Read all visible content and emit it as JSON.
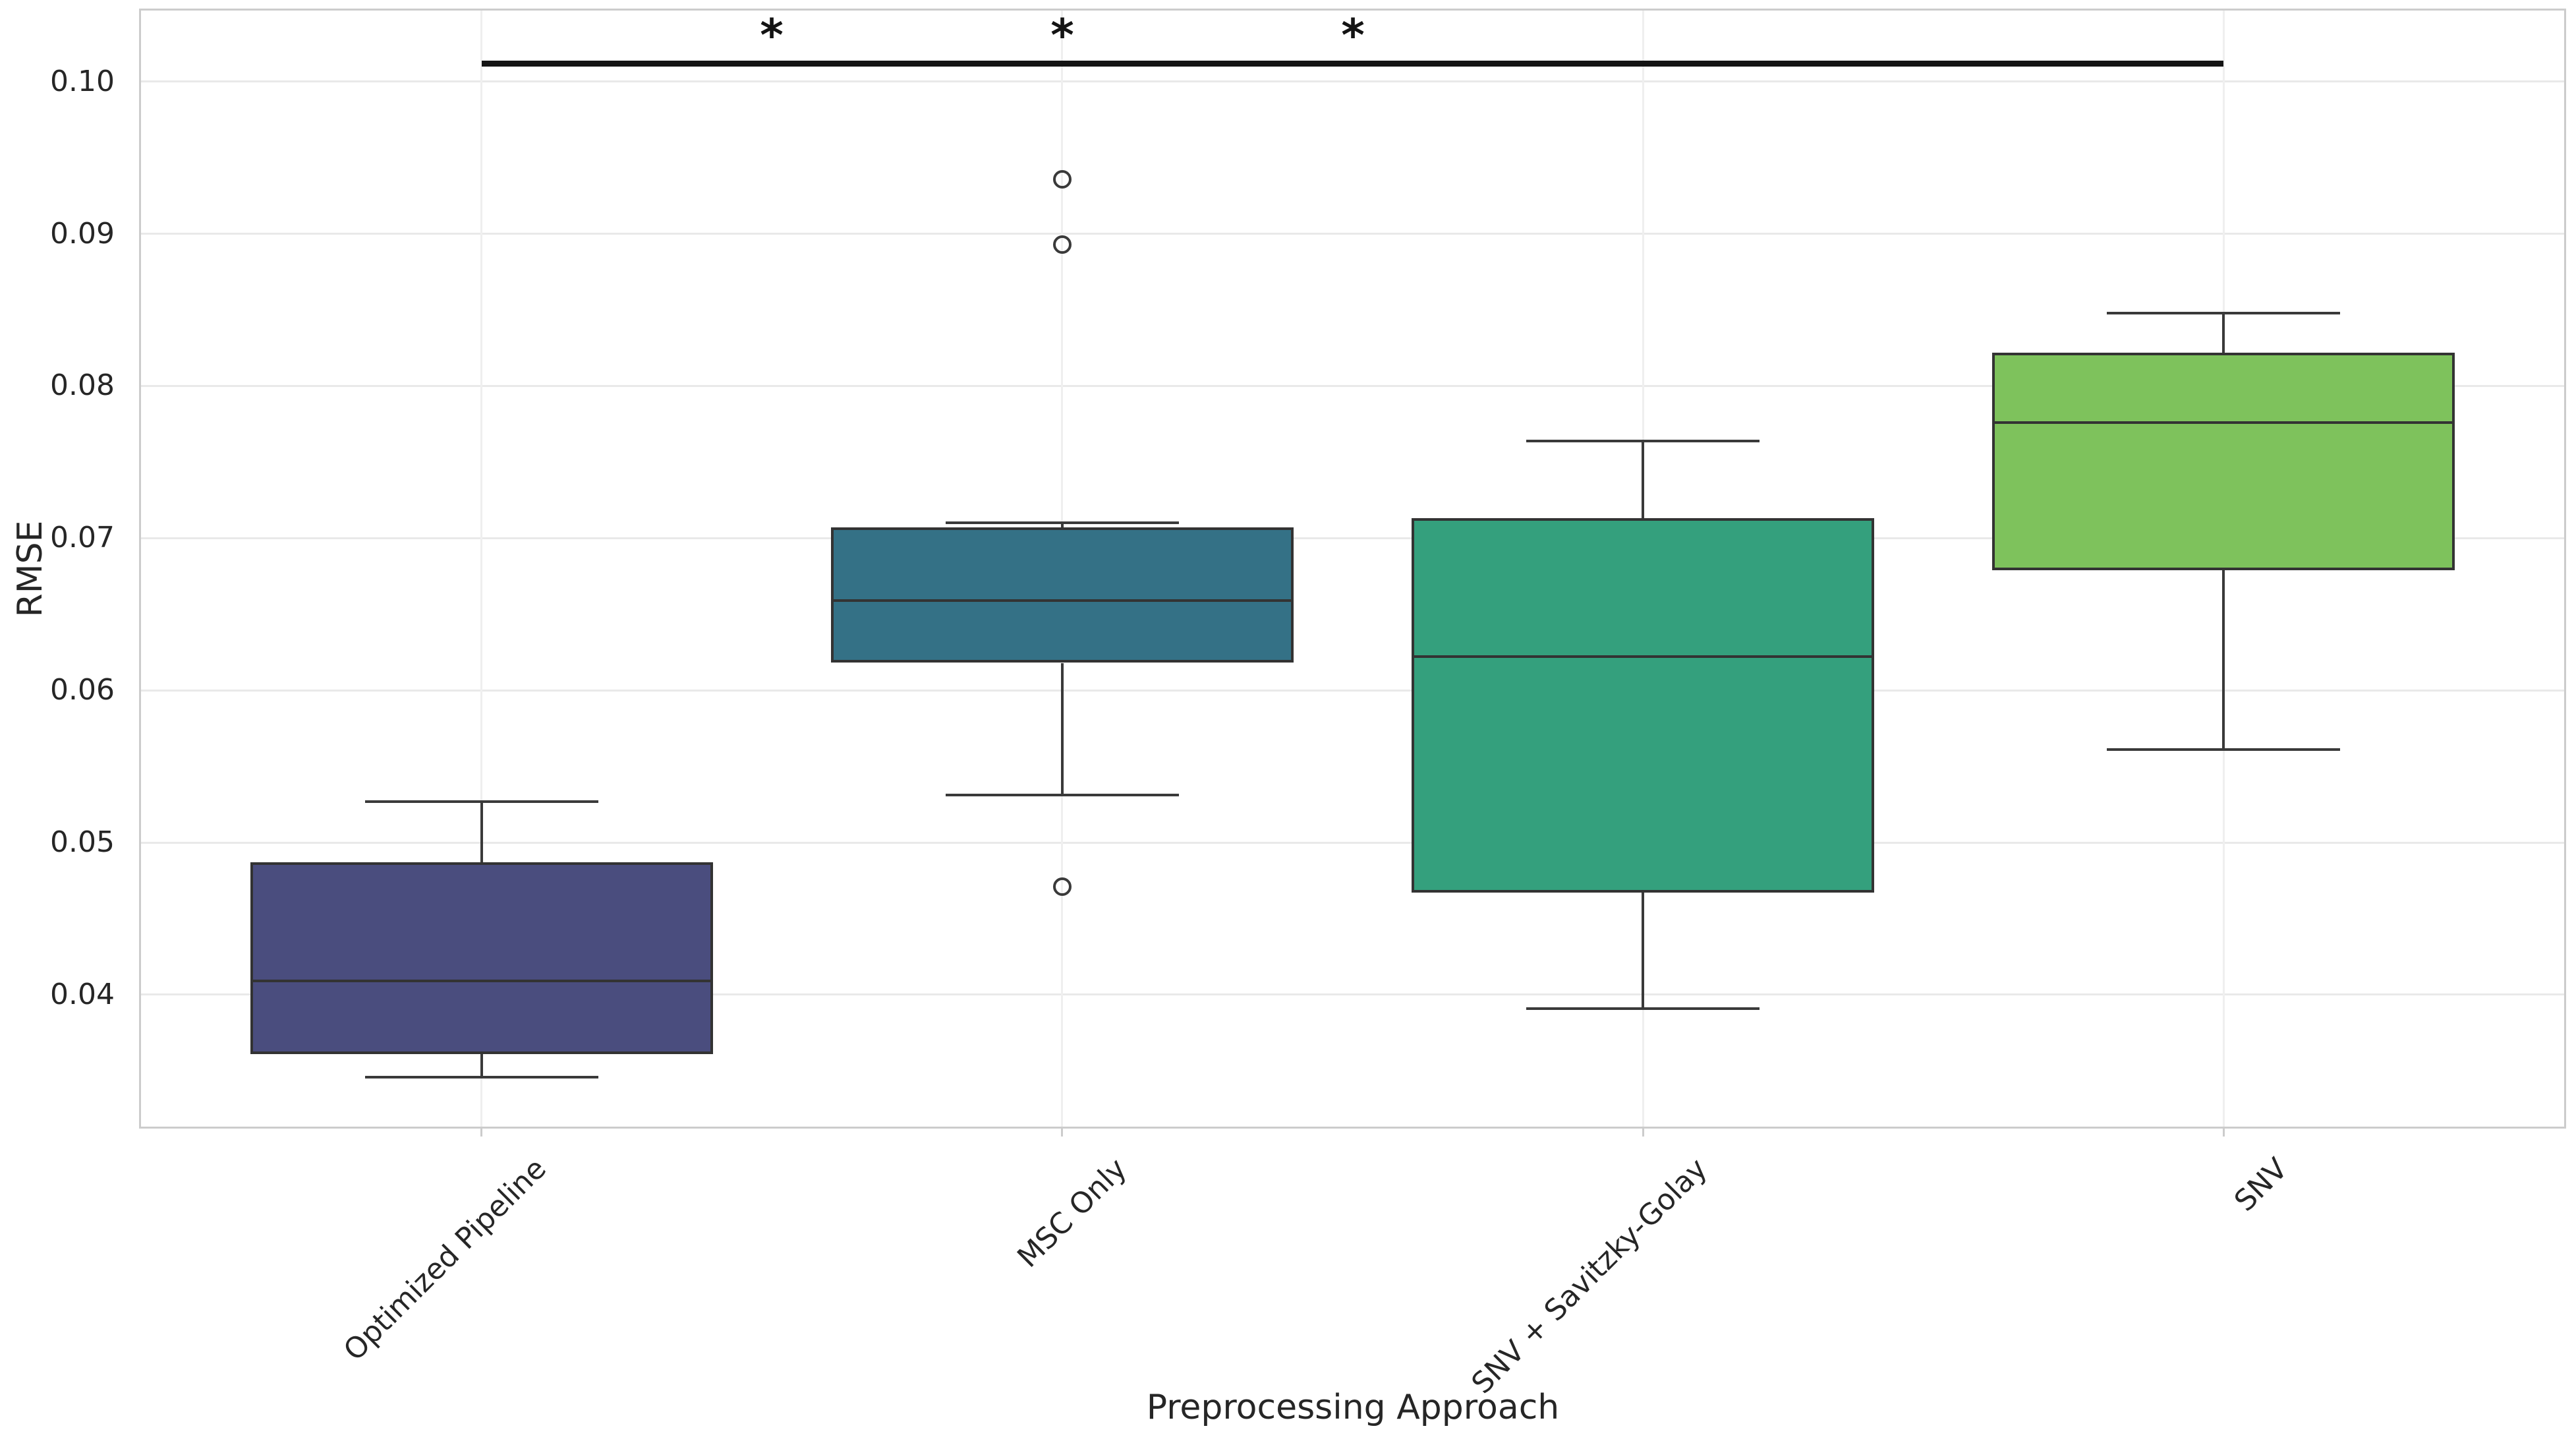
{
  "figure": {
    "background": "#ffffff",
    "text_color": "#262626",
    "grid_color": "#e9e9e9",
    "spine_color": "#cccccc",
    "annotation_color": "#141414"
  },
  "chart_data": {
    "type": "boxplot",
    "title": "",
    "xlabel": "Preprocessing Approach",
    "ylabel": "RMSE",
    "categories": [
      "Optimized Pipeline",
      "MSC Only",
      "SNV + Savitzky-Golay",
      "SNV"
    ],
    "series": [
      {
        "name": "Optimized Pipeline",
        "color": "#4a4d7e",
        "whisker_low": 0.0346,
        "q1": 0.0361,
        "median": 0.0409,
        "q3": 0.0487,
        "whisker_high": 0.0527,
        "outliers": []
      },
      {
        "name": "MSC Only",
        "color": "#347186",
        "whisker_low": 0.0531,
        "q1": 0.0618,
        "median": 0.0659,
        "q3": 0.0707,
        "whisker_high": 0.071,
        "outliers": [
          0.0936,
          0.0893,
          0.0471
        ]
      },
      {
        "name": "SNV + Savitzky-Golay",
        "color": "#34a07d",
        "whisker_low": 0.0391,
        "q1": 0.0467,
        "median": 0.0622,
        "q3": 0.0713,
        "whisker_high": 0.0764,
        "outliers": []
      },
      {
        "name": "SNV",
        "color": "#7ec25c",
        "whisker_low": 0.0561,
        "q1": 0.0679,
        "median": 0.0776,
        "q3": 0.0822,
        "whisker_high": 0.0848,
        "outliers": []
      }
    ],
    "ylim": [
      0.0312,
      0.1048
    ],
    "yticks": [
      0.04,
      0.05,
      0.06,
      0.07,
      0.08,
      0.09,
      0.1
    ],
    "ytick_labels": [
      "0.04",
      "0.05",
      "0.06",
      "0.07",
      "0.08",
      "0.09",
      "0.10"
    ],
    "grid": "horizontal and vertical light gridlines, white background, light gray frame",
    "legend": "none",
    "significance": {
      "bar_value": 0.1012,
      "label_value": 0.1036,
      "comparisons": [
        {
          "groups": [
            0,
            1
          ],
          "label": "*"
        },
        {
          "groups": [
            0,
            2
          ],
          "label": "*"
        },
        {
          "groups": [
            0,
            3
          ],
          "label": "*"
        }
      ]
    }
  }
}
